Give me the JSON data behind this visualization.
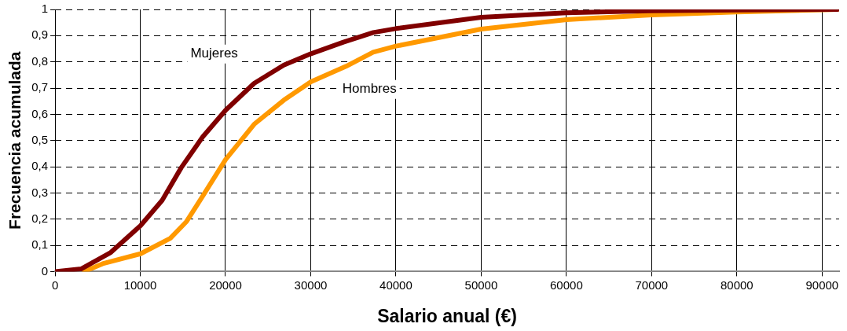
{
  "chart_data": {
    "type": "line",
    "xlabel": "Salario anual (€)",
    "ylabel": "Frecuencia acumulada",
    "xlim": [
      0,
      92000
    ],
    "xticks": [
      0,
      10000,
      20000,
      30000,
      40000,
      50000,
      60000,
      70000,
      80000,
      90000
    ],
    "ylim": [
      0,
      1
    ],
    "yticks": [
      0,
      {
        "value": 0.1,
        "label": "0,1"
      },
      {
        "value": 0.2,
        "label": "0,2"
      },
      {
        "value": 0.3,
        "label": "0,3"
      },
      {
        "value": 0.4,
        "label": "0,4"
      },
      {
        "value": 0.5,
        "label": "0,5"
      },
      {
        "value": 0.6,
        "label": "0,6"
      },
      {
        "value": 0.7,
        "label": "0,7"
      },
      {
        "value": 0.8,
        "label": "0,8"
      },
      {
        "value": 0.9,
        "label": "0,9"
      },
      1
    ],
    "grid": true,
    "legend": false,
    "marker": "none",
    "line_style": "solid",
    "series": [
      {
        "name": "Mujeres",
        "color": "#800000",
        "x": [
          0,
          3050,
          6540,
          10030,
          12570,
          14800,
          17330,
          20030,
          23360,
          26850,
          30030,
          33830,
          37330,
          40000,
          50000,
          60000,
          70000,
          80000,
          91800
        ],
        "values": [
          0,
          0.01,
          0.073,
          0.175,
          0.272,
          0.396,
          0.514,
          0.616,
          0.718,
          0.788,
          0.831,
          0.875,
          0.912,
          0.927,
          0.97,
          0.987,
          0.995,
          0.998,
          1.0
        ]
      },
      {
        "name": "Hombres",
        "color": "#ff9900",
        "x": [
          3420,
          5580,
          10030,
          13520,
          15430,
          17330,
          20030,
          23360,
          26850,
          30030,
          34150,
          37330,
          40000,
          50000,
          60000,
          70000,
          80000,
          91800
        ],
        "values": [
          0,
          0.03,
          0.068,
          0.127,
          0.191,
          0.288,
          0.428,
          0.562,
          0.654,
          0.724,
          0.783,
          0.837,
          0.86,
          0.925,
          0.961,
          0.979,
          0.99,
          1.0
        ]
      }
    ]
  }
}
